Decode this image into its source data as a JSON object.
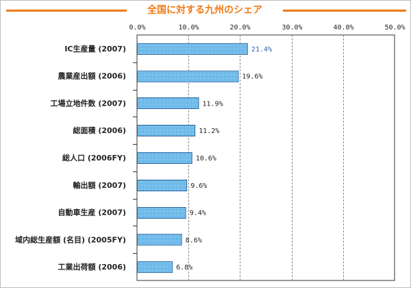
{
  "chart_data": {
    "type": "bar",
    "orientation": "horizontal",
    "title": "全国に対する九州のシェア",
    "categories": [
      "IC生産量 (2007)",
      "農業産出額 (2006)",
      "工場立地件数 (2007)",
      "総面積 (2006)",
      "総人口 (2006FY)",
      "輸出額 (2007)",
      "自動車生産 (2007)",
      "域内総生産額 (名目) (2005FY)",
      "工業出荷額 (2006)"
    ],
    "values": [
      21.4,
      19.6,
      11.9,
      11.2,
      10.6,
      9.6,
      9.4,
      8.6,
      6.8
    ],
    "value_labels": [
      "21.4%",
      "19.6%",
      "11.9%",
      "11.2%",
      "10.6%",
      "9.6%",
      "9.4%",
      "8.6%",
      "6.8%"
    ],
    "xlim": [
      0,
      50
    ],
    "x_ticks": [
      "0.0%",
      "10.0%",
      "20.0%",
      "30.0%",
      "40.0%",
      "50.0%"
    ],
    "grid": true,
    "colors": {
      "bar_fill": "#8fd0f4",
      "bar_dot": "#1f83cc",
      "bar_edge": "#3a6fa6",
      "title": "#ef7a16",
      "highlight_label": "#2a64ae",
      "text": "#222222",
      "axis": "#333333",
      "grid": "#888888"
    },
    "highlight_index": 0
  }
}
